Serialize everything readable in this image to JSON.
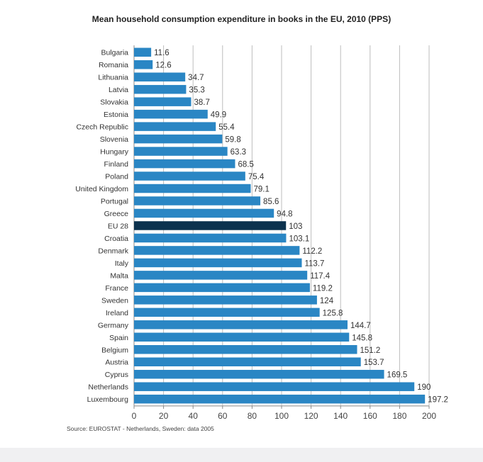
{
  "chart_data": {
    "type": "bar",
    "orientation": "horizontal",
    "title": "Mean household consumption expenditure in books in the EU, 2010 (PPS)",
    "source": "Source: EUROSTAT - Netherlands, Sweden: data 2005",
    "categories": [
      "Bulgaria",
      "Romania",
      "Lithuania",
      "Latvia",
      "Slovakia",
      "Estonia",
      "Czech Republic",
      "Slovenia",
      "Hungary",
      "Finland",
      "Poland",
      "United Kingdom",
      "Portugal",
      "Greece",
      "EU 28",
      "Croatia",
      "Denmark",
      "Italy",
      "Malta",
      "France",
      "Sweden",
      "Ireland",
      "Germany",
      "Spain",
      "Belgium",
      "Austria",
      "Cyprus",
      "Netherlands",
      "Luxembourg"
    ],
    "values": [
      11.6,
      12.6,
      34.7,
      35.3,
      38.7,
      49.9,
      55.4,
      59.8,
      63.3,
      68.5,
      75.4,
      79.1,
      85.6,
      94.8,
      103,
      103.1,
      112.2,
      113.7,
      117.4,
      119.2,
      124,
      125.8,
      144.7,
      145.8,
      151.2,
      153.7,
      169.5,
      190,
      197.2
    ],
    "value_labels": [
      "11.6",
      "12.6",
      "34.7",
      "35.3",
      "38.7",
      "49.9",
      "55.4",
      "59.8",
      "63.3",
      "68.5",
      "75.4",
      "79.1",
      "85.6",
      "94.8",
      "103",
      "103.1",
      "112.2",
      "113.7",
      "117.4",
      "119.2",
      "124",
      "125.8",
      "144.7",
      "145.8",
      "151.2",
      "153.7",
      "169.5",
      "190",
      "197.2"
    ],
    "highlight": "EU 28",
    "xlim": [
      0,
      200
    ],
    "xticks": [
      "0",
      "20",
      "40",
      "60",
      "80",
      "100",
      "120",
      "140",
      "160",
      "180",
      "200"
    ],
    "grid": true,
    "colors": {
      "bar": "#2a86c4",
      "highlight": "#0c324e",
      "grid": "#bdbdbd"
    }
  }
}
